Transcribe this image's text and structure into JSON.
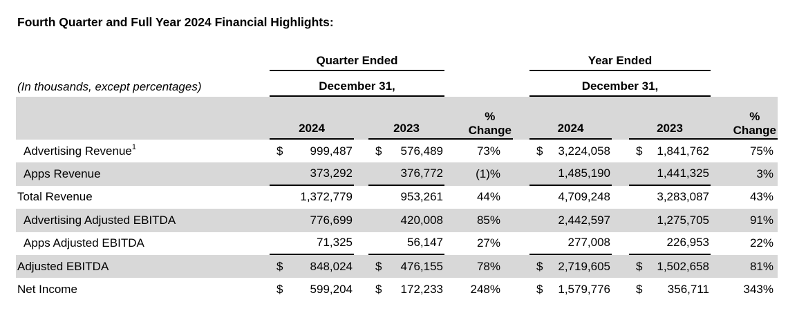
{
  "page": {
    "title": "Fourth Quarter and Full Year 2024 Financial Highlights:",
    "units_note": "(In thousands, except percentages)"
  },
  "colors": {
    "row_shade": "#d8d8d8",
    "rule": "#000000",
    "text": "#000000"
  },
  "table": {
    "groups": [
      {
        "title": "Quarter Ended",
        "subtitle": "December 31,"
      },
      {
        "title": "Year Ended",
        "subtitle": "December 31,"
      }
    ],
    "col_headers": {
      "q2024": "2024",
      "q2023": "2023",
      "q_pct_top": "%",
      "q_pct_bottom": "Change",
      "y2024": "2024",
      "y2023": "2023",
      "y_pct_top": "%",
      "y_pct_bottom": "Change"
    },
    "rows": [
      {
        "label": "Advertising Revenue",
        "sup": "1",
        "q2024_cur": "$",
        "q2024": "999,487",
        "q2023_cur": "$",
        "q2023": "576,489",
        "q_pct": "73%",
        "y2024_cur": "$",
        "y2024": "3,224,058",
        "y2023_cur": "$",
        "y2023": "1,841,762",
        "y_pct": "75%"
      },
      {
        "label": "Apps Revenue",
        "sup": "",
        "q2024_cur": "",
        "q2024": "373,292",
        "q2023_cur": "",
        "q2023": "376,772",
        "q_pct": "(1)%",
        "y2024_cur": "",
        "y2024": "1,485,190",
        "y2023_cur": "",
        "y2023": "1,441,325",
        "y_pct": "3%"
      },
      {
        "label": "Total Revenue",
        "sup": "",
        "q2024_cur": "",
        "q2024": "1,372,779",
        "q2023_cur": "",
        "q2023": "953,261",
        "q_pct": "44%",
        "y2024_cur": "",
        "y2024": "4,709,248",
        "y2023_cur": "",
        "y2023": "3,283,087",
        "y_pct": "43%"
      },
      {
        "label": "Advertising Adjusted EBITDA",
        "sup": "",
        "q2024_cur": "",
        "q2024": "776,699",
        "q2023_cur": "",
        "q2023": "420,008",
        "q_pct": "85%",
        "y2024_cur": "",
        "y2024": "2,442,597",
        "y2023_cur": "",
        "y2023": "1,275,705",
        "y_pct": "91%"
      },
      {
        "label": "Apps Adjusted EBITDA",
        "sup": "",
        "q2024_cur": "",
        "q2024": "71,325",
        "q2023_cur": "",
        "q2023": "56,147",
        "q_pct": "27%",
        "y2024_cur": "",
        "y2024": "277,008",
        "y2023_cur": "",
        "y2023": "226,953",
        "y_pct": "22%"
      },
      {
        "label": "Adjusted EBITDA",
        "sup": "",
        "q2024_cur": "$",
        "q2024": "848,024",
        "q2023_cur": "$",
        "q2023": "476,155",
        "q_pct": "78%",
        "y2024_cur": "$",
        "y2024": "2,719,605",
        "y2023_cur": "$",
        "y2023": "1,502,658",
        "y_pct": "81%"
      },
      {
        "label": "Net Income",
        "sup": "",
        "q2024_cur": "$",
        "q2024": "599,204",
        "q2023_cur": "$",
        "q2023": "172,233",
        "q_pct": "248%",
        "y2024_cur": "$",
        "y2024": "1,579,776",
        "y2023_cur": "$",
        "y2023": "356,711",
        "y_pct": "343%"
      }
    ]
  }
}
